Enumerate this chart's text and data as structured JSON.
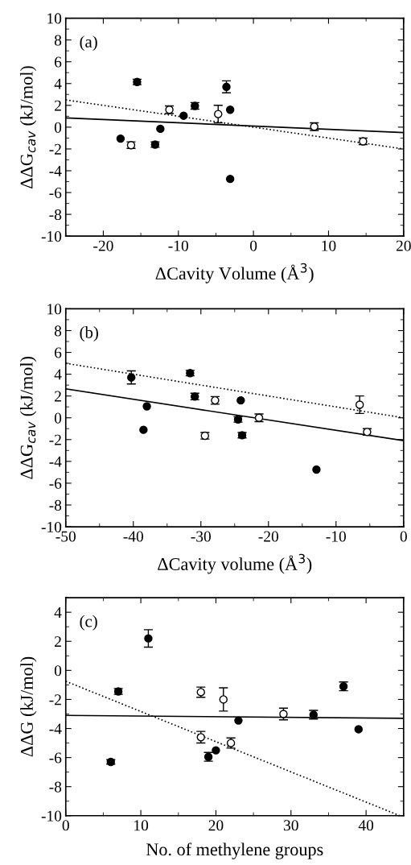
{
  "chart_data": [
    {
      "type": "scatter",
      "xlabel": "ΔCavity Volume (Å$^{3}$)",
      "ylabel": "ΔΔG$_{cav}$ (kJ/mol)",
      "annotations": [
        "(a)"
      ],
      "xlim": [
        -25,
        20
      ],
      "xticks": [
        -20,
        -10,
        0,
        10,
        20
      ],
      "ylim": [
        -10,
        10
      ],
      "yticks": [
        -10,
        -8,
        -6,
        -4,
        -2,
        0,
        2,
        4,
        6,
        8,
        10
      ],
      "grid": false,
      "legend": false,
      "marker": "circle",
      "series": [
        {
          "color": "#000000",
          "x": [
            -17.7,
            -15.5,
            -13.1,
            -12.4,
            -9.3,
            -7.8,
            -3.6,
            -3.1,
            -3.1
          ],
          "values": [
            -1.05,
            4.15,
            -1.6,
            -0.15,
            1.05,
            1.95,
            3.7,
            1.6,
            -4.75
          ],
          "errors": [
            null,
            0.25,
            0.25,
            null,
            null,
            0.3,
            0.55,
            null,
            null
          ]
        },
        {
          "color": "#ffffff",
          "x": [
            -16.3,
            -11.2,
            -4.7,
            8.1,
            14.6
          ],
          "values": [
            -1.65,
            1.6,
            1.2,
            0.05,
            -1.3
          ],
          "errors": [
            0.3,
            0.35,
            0.8,
            0.35,
            0.3
          ]
        },
        {
          "type": "line",
          "color": "#000000",
          "line_style": "solid",
          "marker": "none",
          "x": [
            -25,
            20
          ],
          "values": [
            0.85,
            -0.5
          ]
        },
        {
          "type": "line",
          "color": "#000000",
          "line_style": "dotted",
          "marker": "none",
          "x": [
            -25,
            20
          ],
          "values": [
            2.5,
            -2.0
          ]
        }
      ]
    },
    {
      "type": "scatter",
      "xlabel": "ΔCavity volume (Å$^{3}$)",
      "ylabel": "ΔΔG$_{cav}$ (kJ/mol)",
      "annotations": [
        "(b)"
      ],
      "xlim": [
        -50,
        0
      ],
      "xticks": [
        -50,
        -40,
        -30,
        -20,
        -10,
        0
      ],
      "ylim": [
        -10,
        10
      ],
      "yticks": [
        -10,
        -8,
        -6,
        -4,
        -2,
        0,
        2,
        4,
        6,
        8,
        10
      ],
      "grid": false,
      "legend": false,
      "marker": "circle",
      "series": [
        {
          "color": "#000000",
          "x": [
            -40.3,
            -38.5,
            -38.0,
            -31.6,
            -30.9,
            -24.5,
            -24.1,
            -23.9,
            -12.9
          ],
          "values": [
            3.7,
            -1.1,
            1.05,
            4.1,
            1.95,
            -0.15,
            1.6,
            -1.6,
            -4.75
          ],
          "errors": [
            0.6,
            null,
            null,
            0.25,
            0.3,
            0.25,
            null,
            0.25,
            null
          ]
        },
        {
          "color": "#ffffff",
          "x": [
            -29.4,
            -27.9,
            -21.4,
            -6.5,
            -5.4
          ],
          "values": [
            -1.65,
            1.6,
            0.0,
            1.2,
            -1.3
          ],
          "errors": [
            0.3,
            0.35,
            0.35,
            0.8,
            0.3
          ]
        },
        {
          "type": "line",
          "color": "#000000",
          "line_style": "solid",
          "marker": "none",
          "x": [
            -50,
            0
          ],
          "values": [
            2.65,
            -2.1
          ]
        },
        {
          "type": "line",
          "color": "#000000",
          "line_style": "dotted",
          "marker": "none",
          "x": [
            -50,
            0
          ],
          "values": [
            5.0,
            0.0
          ]
        }
      ]
    },
    {
      "type": "scatter",
      "xlabel": "No. of methylene groups",
      "ylabel": "ΔΔG (kJ/mol)",
      "annotations": [
        "(c)"
      ],
      "xlim": [
        0,
        45
      ],
      "xticks": [
        0,
        10,
        20,
        30,
        40
      ],
      "ylim": [
        -10,
        5
      ],
      "yticks": [
        -10,
        -8,
        -6,
        -4,
        -2,
        0,
        2,
        4
      ],
      "grid": false,
      "legend": false,
      "marker": "circle",
      "series": [
        {
          "color": "#000000",
          "x": [
            6,
            7,
            11,
            19,
            20,
            23,
            33,
            37,
            39
          ],
          "values": [
            -6.3,
            -1.45,
            2.2,
            -5.95,
            -5.5,
            -3.45,
            -3.05,
            -1.1,
            -4.05
          ],
          "errors": [
            0.15,
            0.2,
            0.6,
            0.3,
            null,
            null,
            0.3,
            0.3,
            null
          ]
        },
        {
          "color": "#ffffff",
          "x": [
            18,
            18,
            21,
            22,
            29
          ],
          "values": [
            -1.5,
            -4.6,
            -2.0,
            -5.0,
            -3.0
          ],
          "errors": [
            0.35,
            0.4,
            0.8,
            0.35,
            0.4
          ]
        },
        {
          "type": "line",
          "color": "#000000",
          "line_style": "solid",
          "marker": "none",
          "x": [
            0,
            45
          ],
          "values": [
            -3.1,
            -3.3
          ]
        },
        {
          "type": "line",
          "color": "#000000",
          "line_style": "dotted",
          "marker": "none",
          "x": [
            0,
            44.5
          ],
          "values": [
            -0.75,
            -10
          ]
        }
      ]
    }
  ]
}
